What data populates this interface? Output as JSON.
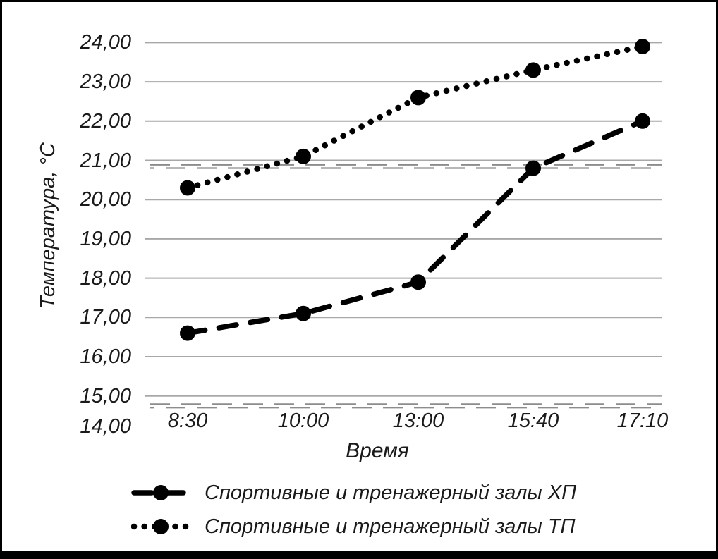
{
  "chart_data": {
    "type": "line",
    "title": "",
    "xlabel": "Время",
    "ylabel": "Температура, °C",
    "categories": [
      "8:30",
      "10:00",
      "13:00",
      "15:40",
      "17:10"
    ],
    "y_axis": {
      "min": 14,
      "max": 24,
      "tick_step": 1,
      "tick_labels": [
        "24,00",
        "23,00",
        "22,00",
        "21,00",
        "20,00",
        "19,00",
        "18,00",
        "17,00",
        "16,00",
        "15,00",
        "14,00"
      ]
    },
    "series": [
      {
        "name": "Спортивные и тренажерный залы ХП",
        "line_style": "dashed",
        "marker": "circle",
        "color": "#000000",
        "values": [
          16.6,
          17.1,
          17.9,
          20.8,
          22.0
        ]
      },
      {
        "name": "Спортивные и тренажерный залы ТП",
        "line_style": "dotted",
        "marker": "circle",
        "color": "#000000",
        "values": [
          20.3,
          21.1,
          22.6,
          23.3,
          23.9
        ]
      }
    ],
    "reference_lines": [
      {
        "value": 20.9,
        "style": "double-dashed",
        "color": "#8c8c8c"
      },
      {
        "value": 14.8,
        "style": "double-dashed",
        "color": "#8c8c8c"
      }
    ],
    "grid": true,
    "legend_position": "bottom-left",
    "colors": {
      "gridline": "#a8a8a8",
      "series": "#000000",
      "reference": "#8c8c8c",
      "background": "#ffffff",
      "border": "#000000"
    }
  }
}
